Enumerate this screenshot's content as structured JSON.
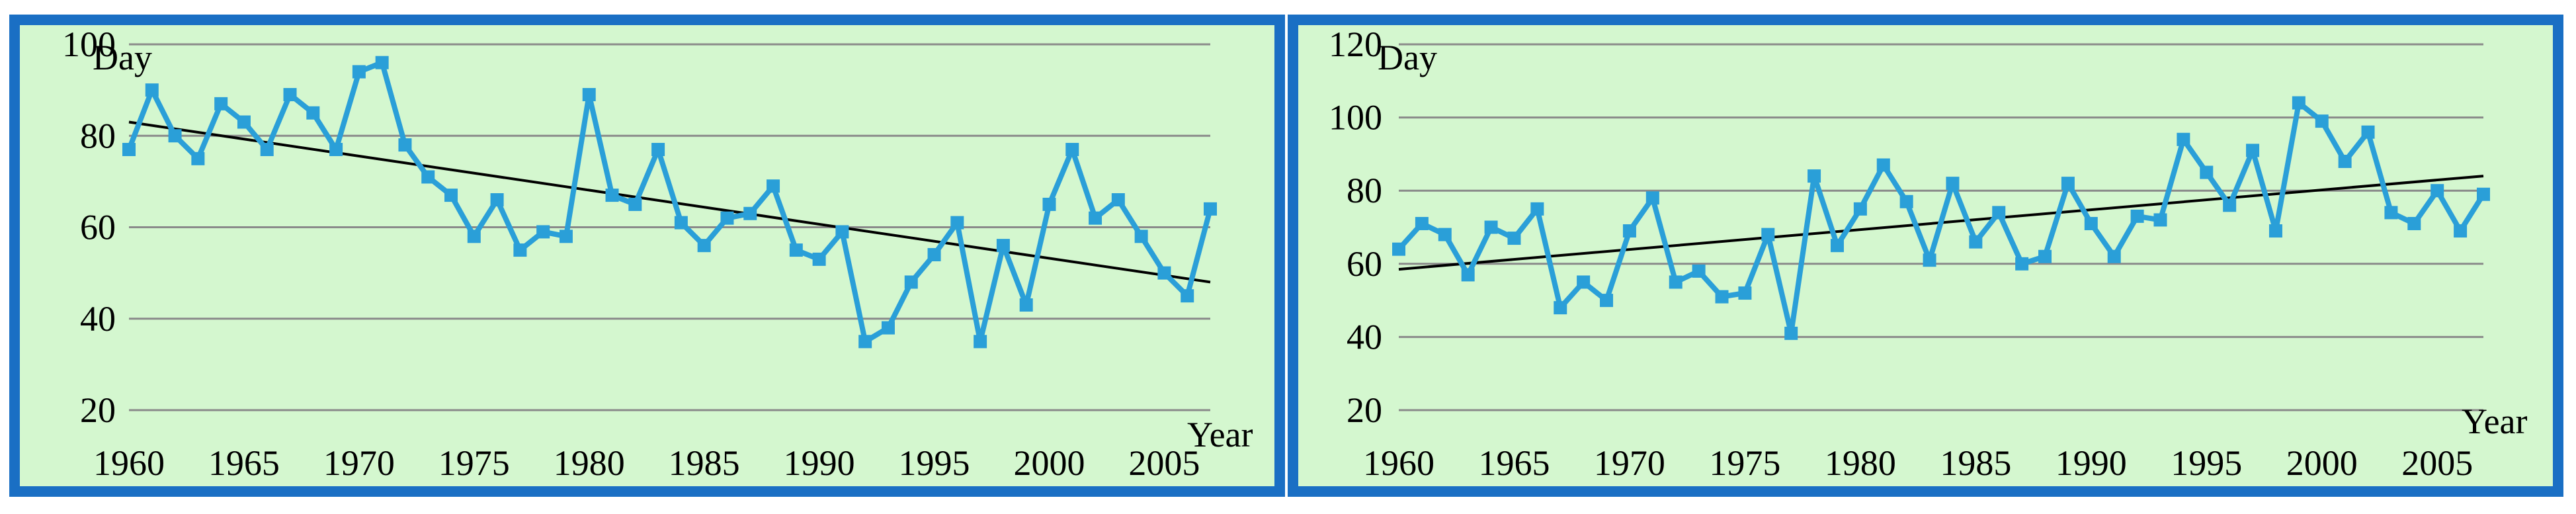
{
  "colors": {
    "frame": "#1a6fc4",
    "plot_background": "#d4f7cf",
    "series": "#2a9fd8",
    "trend": "#000000",
    "grid": "#8a8a8a"
  },
  "chart_data": [
    {
      "type": "line",
      "ylabel": "Day",
      "xlabel": "Year",
      "xlim": [
        1960,
        2007
      ],
      "ylim": [
        20,
        100
      ],
      "xticks": [
        "1960",
        "1965",
        "1970",
        "1975",
        "1980",
        "1985",
        "1990",
        "1995",
        "2000",
        "2005"
      ],
      "yticks": [
        "20",
        "40",
        "60",
        "80",
        "100"
      ],
      "grid": "horizontal",
      "marker": "square",
      "x": [
        1960,
        1961,
        1962,
        1963,
        1964,
        1965,
        1966,
        1967,
        1968,
        1969,
        1970,
        1971,
        1972,
        1973,
        1974,
        1975,
        1976,
        1977,
        1978,
        1979,
        1980,
        1981,
        1982,
        1983,
        1984,
        1985,
        1986,
        1987,
        1988,
        1989,
        1990,
        1991,
        1992,
        1993,
        1994,
        1995,
        1996,
        1997,
        1998,
        1999,
        2000,
        2001,
        2002,
        2003,
        2004,
        2005,
        2006,
        2007
      ],
      "series": [
        {
          "values": [
            77,
            90,
            80,
            75,
            87,
            83,
            77,
            89,
            85,
            77,
            94,
            96,
            78,
            71,
            67,
            58,
            66,
            55,
            59,
            58,
            89,
            67,
            65,
            77,
            61,
            56,
            62,
            63,
            69,
            55,
            53,
            59,
            35,
            38,
            48,
            54,
            61,
            35,
            56,
            43,
            65,
            77,
            62,
            66,
            58,
            50,
            45,
            64
          ]
        }
      ],
      "trend": {
        "x": [
          1960,
          2007
        ],
        "y": [
          83,
          48
        ]
      }
    },
    {
      "type": "line",
      "ylabel": "Day",
      "xlabel": "Year",
      "xlim": [
        1960,
        2007
      ],
      "ylim": [
        20,
        120
      ],
      "xticks": [
        "1960",
        "1965",
        "1970",
        "1975",
        "1980",
        "1985",
        "1990",
        "1995",
        "2000",
        "2005"
      ],
      "yticks": [
        "20",
        "40",
        "60",
        "80",
        "100",
        "120"
      ],
      "grid": "horizontal",
      "marker": "square",
      "x": [
        1960,
        1961,
        1962,
        1963,
        1964,
        1965,
        1966,
        1967,
        1968,
        1969,
        1970,
        1971,
        1972,
        1973,
        1974,
        1975,
        1976,
        1977,
        1978,
        1979,
        1980,
        1981,
        1982,
        1983,
        1984,
        1985,
        1986,
        1987,
        1988,
        1989,
        1990,
        1991,
        1992,
        1993,
        1994,
        1995,
        1996,
        1997,
        1998,
        1999,
        2000,
        2001,
        2002,
        2003,
        2004,
        2005,
        2006,
        2007
      ],
      "series": [
        {
          "values": [
            64,
            71,
            68,
            57,
            70,
            67,
            75,
            48,
            55,
            50,
            69,
            78,
            55,
            58,
            51,
            52,
            68,
            41,
            84,
            65,
            75,
            87,
            77,
            61,
            82,
            66,
            74,
            60,
            62,
            82,
            71,
            62,
            73,
            72,
            94,
            85,
            76,
            91,
            69,
            104,
            99,
            88,
            96,
            74,
            71,
            80,
            69,
            79
          ]
        }
      ],
      "trend": {
        "x": [
          1960,
          2007
        ],
        "y": [
          58.5,
          84
        ]
      }
    }
  ]
}
